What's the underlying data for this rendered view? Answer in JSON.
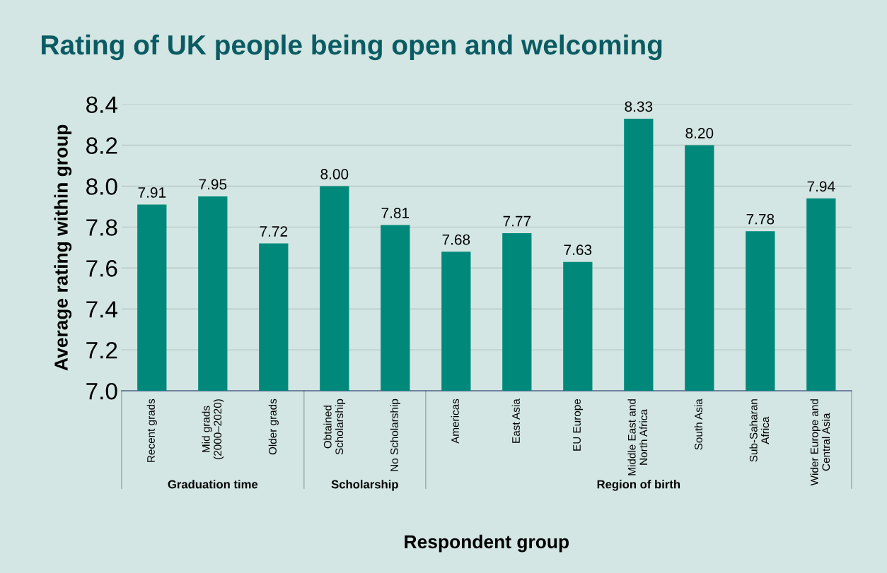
{
  "chart_data": {
    "type": "bar",
    "title": "Rating of UK people being open and welcoming",
    "xlabel": "Respondent group",
    "ylabel": "Average rating within group",
    "categories": [
      "Recent grads",
      "Mid grads\n(2000–2020)",
      "Older grads",
      "Obtained\nScholarship",
      "No Scholarship",
      "Americas",
      "East Asia",
      "EU Europe",
      "Middle East and\nNorth Africa",
      "South Asia",
      "Sub-Saharan\nAfrica",
      "Wider Europe and\nCentral Asia"
    ],
    "values": [
      7.91,
      7.95,
      7.72,
      8.0,
      7.81,
      7.68,
      7.77,
      7.63,
      8.33,
      8.2,
      7.78,
      7.94
    ],
    "value_labels": [
      "7.91",
      "7.95",
      "7.72",
      "8.00",
      "7.81",
      "7.68",
      "7.77",
      "7.63",
      "8.33",
      "8.20",
      "7.78",
      "7.94"
    ],
    "color": "#00897b",
    "ylim": [
      7.0,
      8.4
    ],
    "yticks": [
      {
        "value": 7.0,
        "label": "7.0"
      },
      {
        "value": 7.2,
        "label": "7.2"
      },
      {
        "value": 7.4,
        "label": "7.4"
      },
      {
        "value": 7.6,
        "label": "7.6"
      },
      {
        "value": 7.8,
        "label": "7.8"
      },
      {
        "value": 8.0,
        "label": "8.0"
      },
      {
        "value": 8.2,
        "label": "8.2"
      },
      {
        "value": 8.4,
        "label": "8.4"
      }
    ],
    "grid": "y",
    "annotations": [
      "Graduation time",
      "Scholarship",
      "Region of birth"
    ]
  }
}
